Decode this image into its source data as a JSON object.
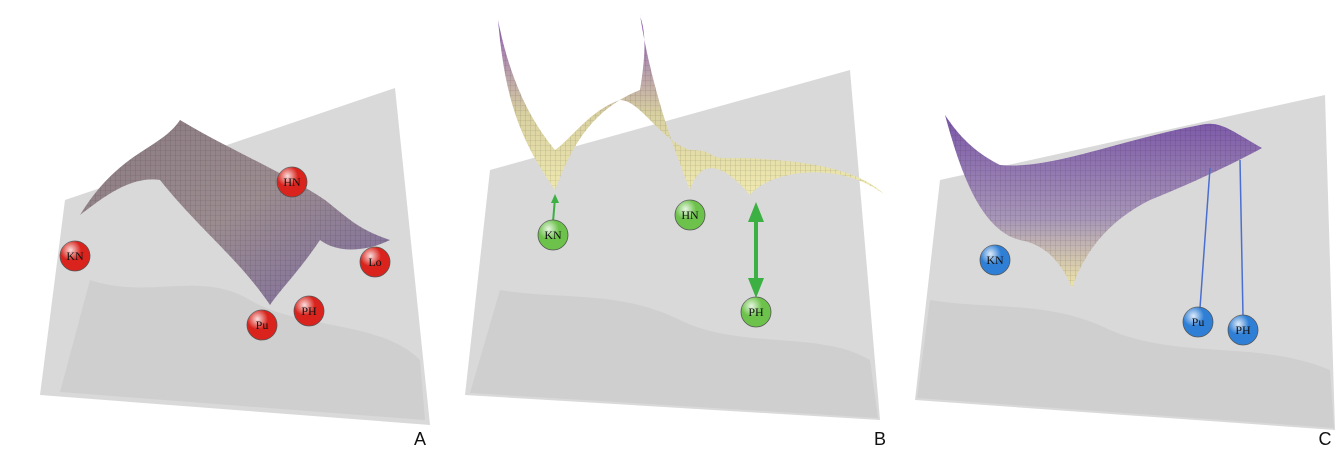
{
  "panels": [
    {
      "label": "A",
      "marker_color": "#d9231c",
      "markers": [
        "HN",
        "KN",
        "Lo",
        "Pu",
        "PH"
      ]
    },
    {
      "label": "B",
      "marker_color": "#6cc24a",
      "markers": [
        "KN",
        "HN",
        "PH"
      ]
    },
    {
      "label": "C",
      "marker_color": "#2f7fd6",
      "markers": [
        "KN",
        "Pu",
        "PH"
      ]
    }
  ]
}
